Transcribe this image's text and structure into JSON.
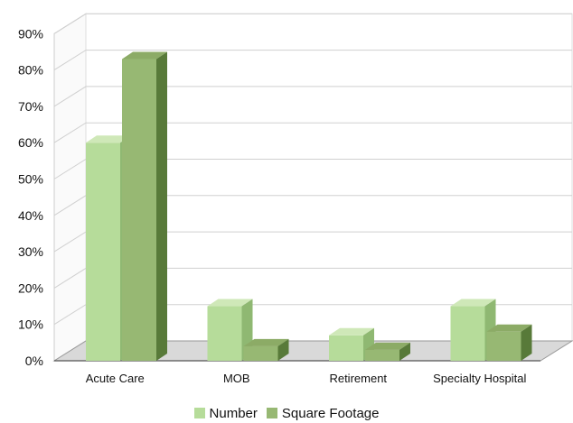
{
  "chart_data": {
    "type": "bar",
    "categories": [
      "Acute Care",
      "MOB",
      "Retirement",
      "Specialty Hospital"
    ],
    "series": [
      {
        "name": "Number",
        "values": [
          60,
          15,
          7,
          15
        ]
      },
      {
        "name": "Square Footage",
        "values": [
          83,
          4,
          3,
          8
        ]
      }
    ],
    "yticks": [
      "0%",
      "10%",
      "20%",
      "30%",
      "40%",
      "50%",
      "60%",
      "70%",
      "80%",
      "90%"
    ],
    "ylim": [
      0,
      90
    ],
    "grid": true,
    "legend": "bottom",
    "colors": {
      "Number": {
        "front": "#b6dc9a",
        "top": "#cfe8b8",
        "side": "#8fb872"
      },
      "Square Footage": {
        "front": "#97b873",
        "top": "#8cab66",
        "side": "#587a39"
      }
    }
  }
}
